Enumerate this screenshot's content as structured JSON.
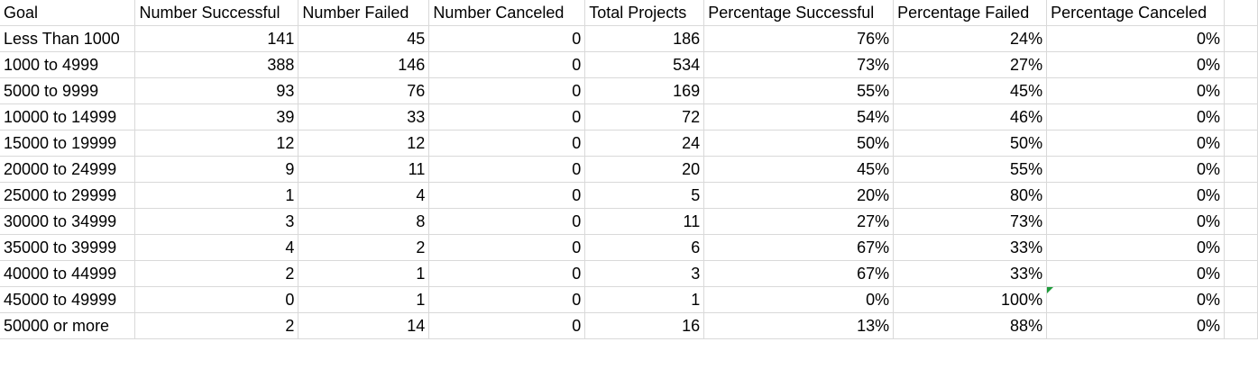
{
  "columns": [
    "Goal",
    "Number Successful",
    "Number Failed",
    "Number Canceled",
    "Total Projects",
    "Percentage Successful",
    "Percentage Failed",
    "Percentage Canceled"
  ],
  "rows": [
    [
      "Less Than 1000",
      "141",
      "45",
      "0",
      "186",
      "76%",
      "24%",
      "0%"
    ],
    [
      "1000 to 4999",
      "388",
      "146",
      "0",
      "534",
      "73%",
      "27%",
      "0%"
    ],
    [
      "5000 to 9999",
      "93",
      "76",
      "0",
      "169",
      "55%",
      "45%",
      "0%"
    ],
    [
      "10000 to 14999",
      "39",
      "33",
      "0",
      "72",
      "54%",
      "46%",
      "0%"
    ],
    [
      "15000 to 19999",
      "12",
      "12",
      "0",
      "24",
      "50%",
      "50%",
      "0%"
    ],
    [
      "20000 to 24999",
      "9",
      "11",
      "0",
      "20",
      "45%",
      "55%",
      "0%"
    ],
    [
      "25000 to 29999",
      "1",
      "4",
      "0",
      "5",
      "20%",
      "80%",
      "0%"
    ],
    [
      "30000 to 34999",
      "3",
      "8",
      "0",
      "11",
      "27%",
      "73%",
      "0%"
    ],
    [
      "35000 to 39999",
      "4",
      "2",
      "0",
      "6",
      "67%",
      "33%",
      "0%"
    ],
    [
      "40000 to 44999",
      "2",
      "1",
      "0",
      "3",
      "67%",
      "33%",
      "0%"
    ],
    [
      "45000 to 49999",
      "0",
      "1",
      "0",
      "1",
      "0%",
      "100%",
      "0%"
    ],
    [
      "50000 or more",
      "2",
      "14",
      "0",
      "16",
      "13%",
      "88%",
      "0%"
    ]
  ],
  "indicator_color": "#1e9c3a"
}
